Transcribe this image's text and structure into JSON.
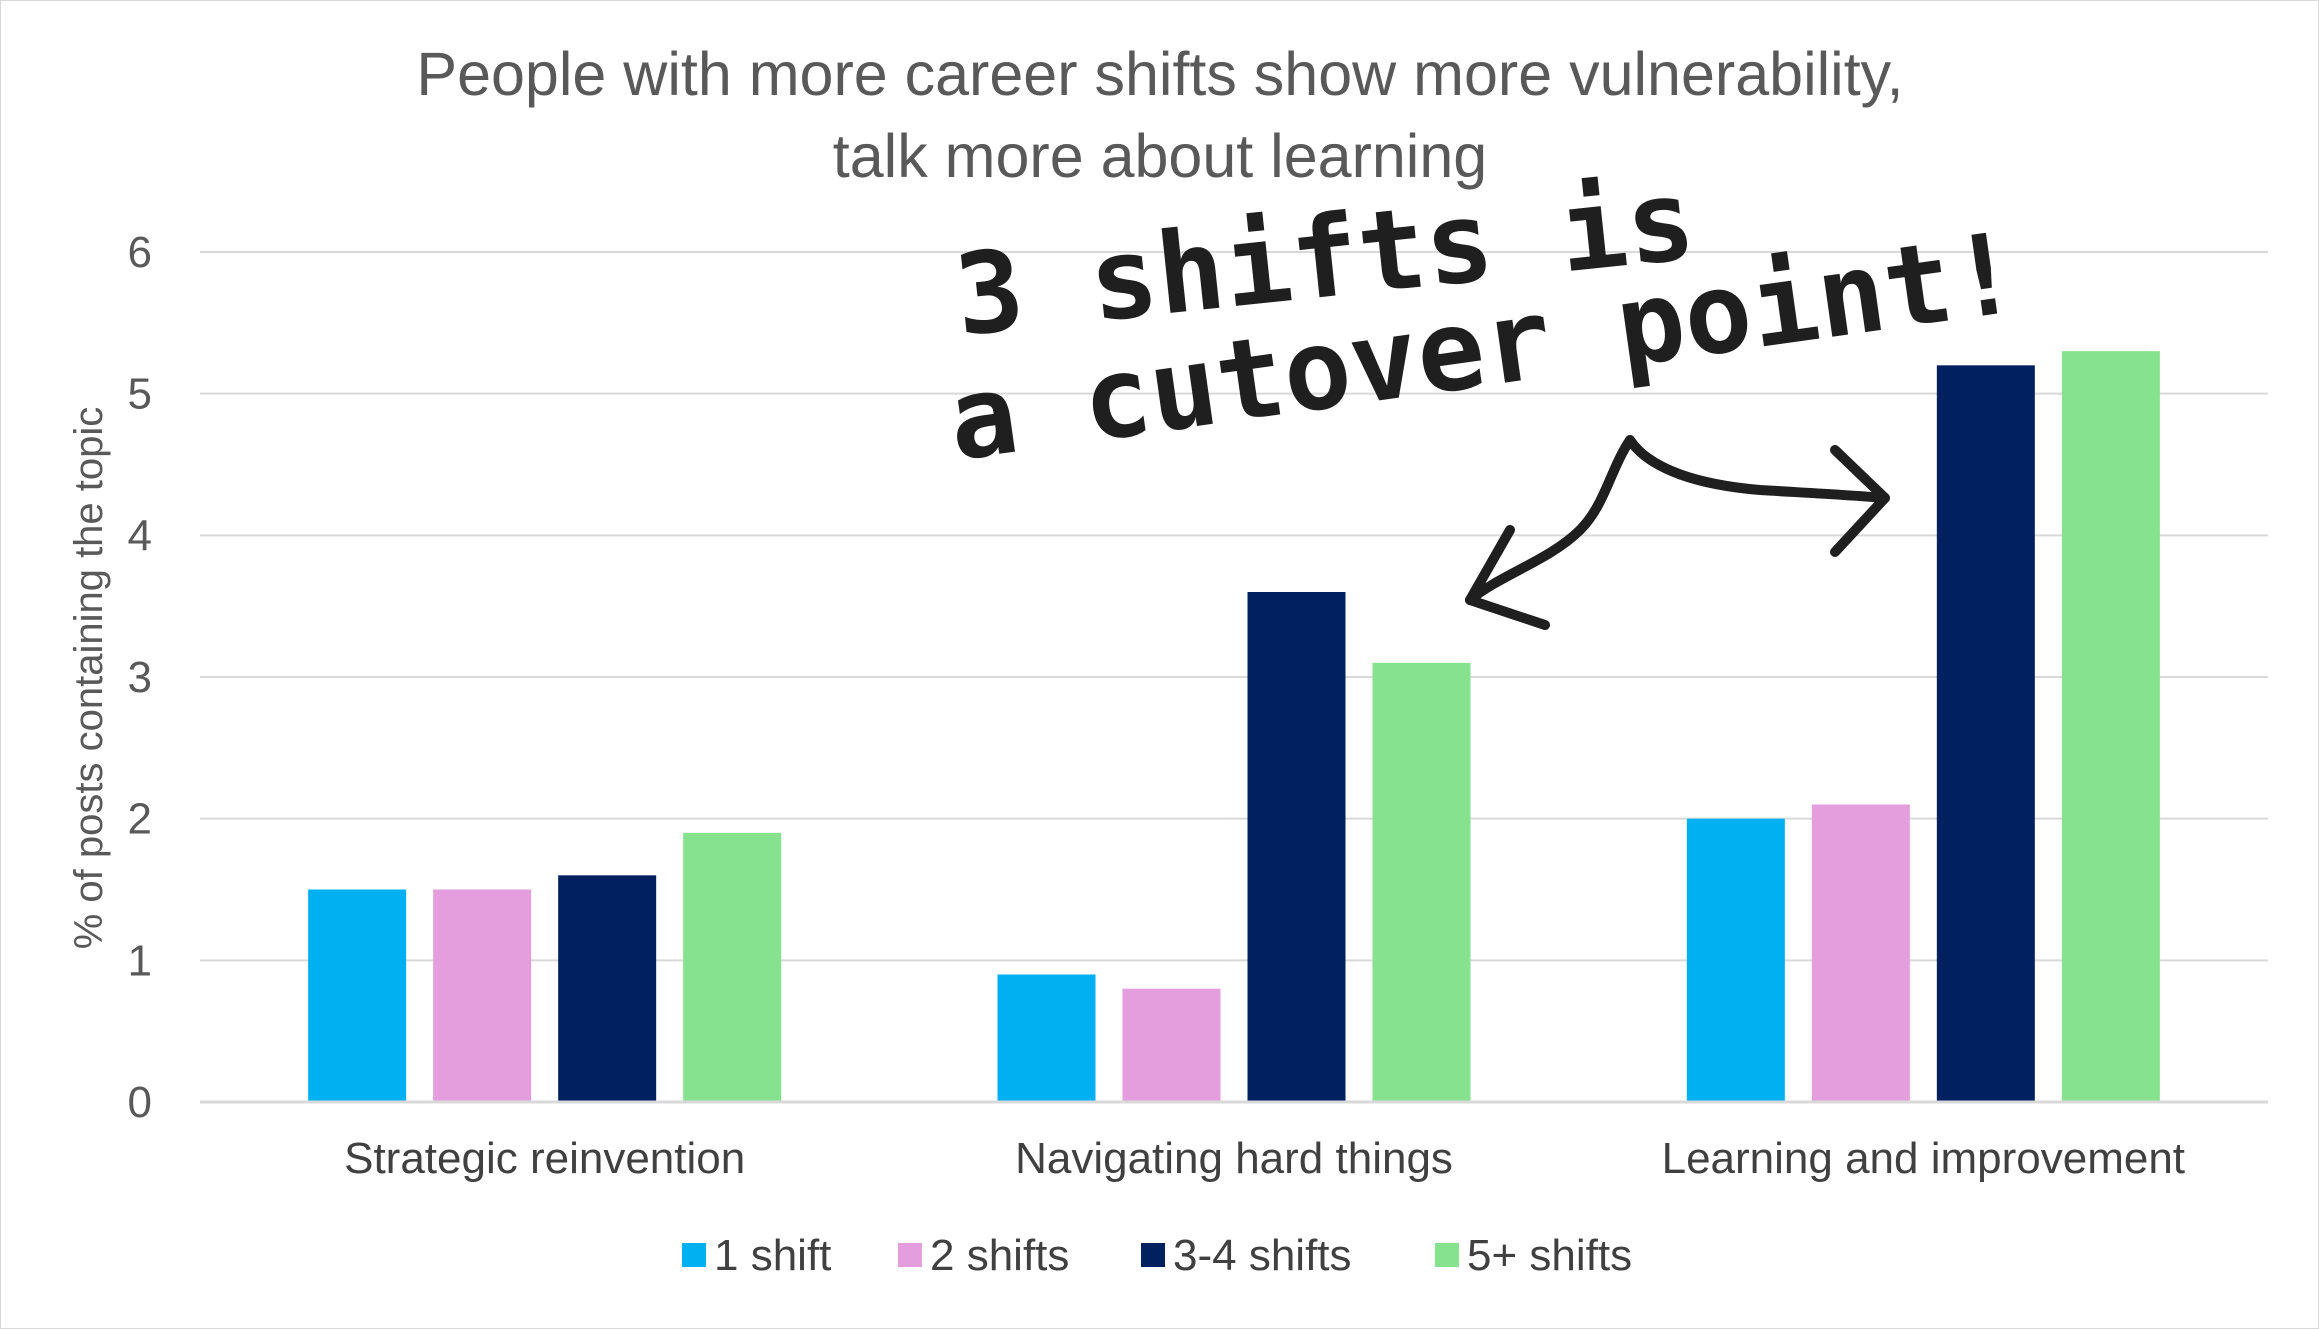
{
  "chart_data": {
    "type": "bar",
    "title": "People with more career shifts show more vulnerability, talk more about learning",
    "title_lines": [
      "People with more career shifts show more vulnerability,",
      "talk more about learning"
    ],
    "xlabel": "",
    "ylabel": "% of posts containing the topic",
    "ylim": [
      0,
      6
    ],
    "yticks": [
      0,
      1,
      2,
      3,
      4,
      5,
      6
    ],
    "grid": true,
    "legend_position": "bottom",
    "categories": [
      "Strategic reinvention",
      "Navigating hard things",
      "Learning and improvement"
    ],
    "series": [
      {
        "name": "1 shift",
        "color": "#00b0f0",
        "values": [
          1.5,
          0.9,
          2.0
        ]
      },
      {
        "name": "2 shifts",
        "color": "#e49edd",
        "values": [
          1.5,
          0.8,
          2.1
        ]
      },
      {
        "name": "3-4 shifts",
        "color": "#002060",
        "values": [
          1.6,
          3.6,
          5.2
        ]
      },
      {
        "name": "5+ shifts",
        "color": "#86e28e",
        "values": [
          1.9,
          3.1,
          5.3
        ]
      }
    ],
    "annotation": {
      "lines": [
        "3 shifts is",
        "a cutover point!"
      ],
      "style": "handwritten",
      "arrows_to": [
        "Navigating hard things",
        "Learning and improvement"
      ]
    }
  }
}
